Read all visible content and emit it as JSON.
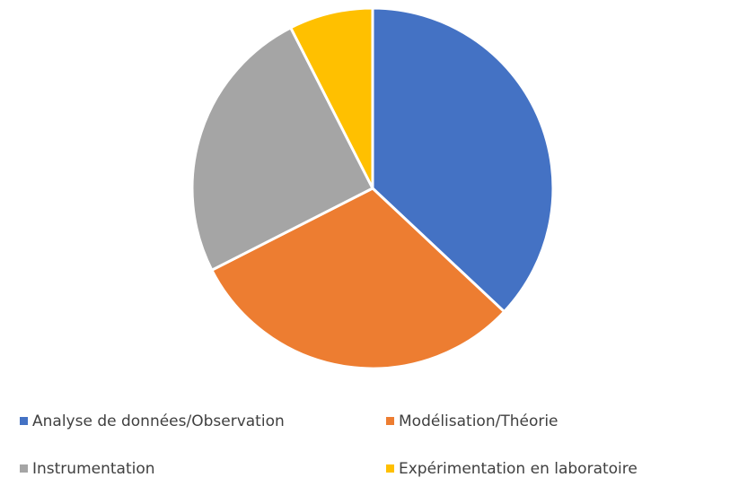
{
  "chart_data": {
    "type": "pie",
    "categories": [
      "Analyse de données/Observation",
      "Modélisation/Théorie",
      "Instrumentation",
      "Expérimentation en laboratoire"
    ],
    "values": [
      37,
      30.5,
      25,
      7.5
    ],
    "colors": [
      "#4472c4",
      "#ed7d31",
      "#a5a5a5",
      "#ffc000"
    ],
    "legend": "bottom"
  }
}
